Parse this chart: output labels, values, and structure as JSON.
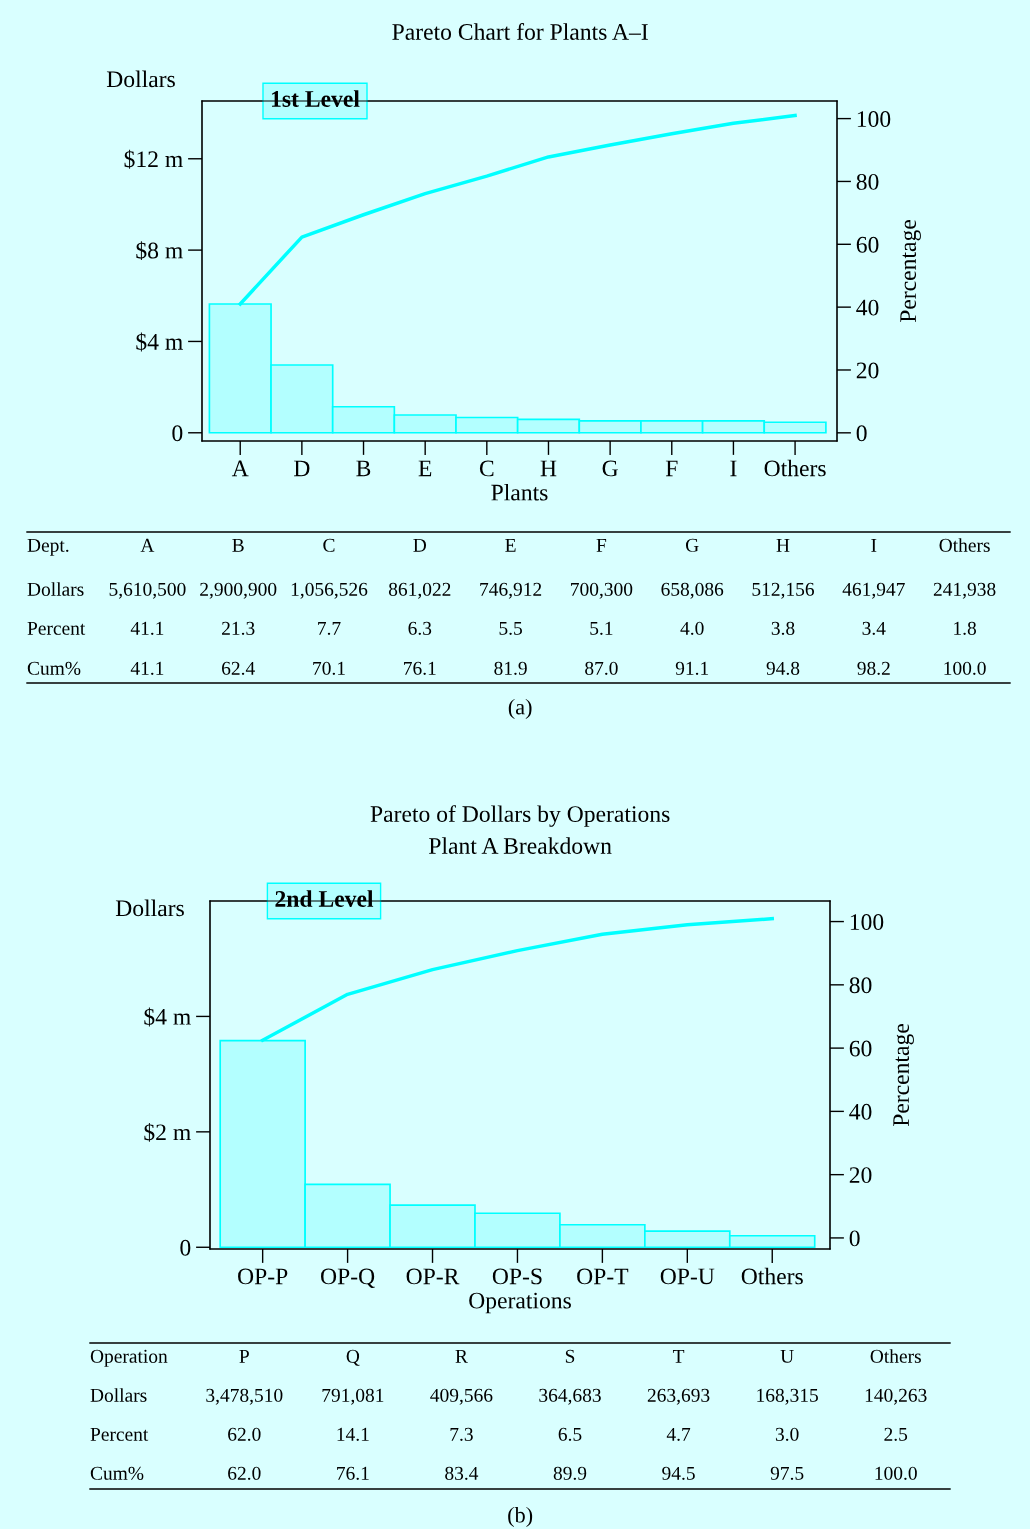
{
  "chart_data": [
    {
      "type": "bar",
      "title": "Pareto Chart for Plants A–I",
      "xlabel": "Plants",
      "ylabel": "Dollars",
      "y2label": "Percentage",
      "categories": [
        "A",
        "D",
        "B",
        "E",
        "C",
        "H",
        "G",
        "F",
        "I",
        "Others"
      ],
      "series": [
        {
          "color": "#b3ffff",
          "values": [
            5.64,
            2.97,
            1.14,
            0.78,
            0.67,
            0.59,
            0.52,
            0.52,
            0.52,
            0.46
          ]
        },
        {
          "type": "line",
          "axis": "y2",
          "color": "#00ffff",
          "values": [
            41.0,
            62.3,
            69.4,
            76.1,
            81.7,
            87.8,
            91.6,
            95.2,
            98.5,
            101.0
          ]
        }
      ],
      "ylim": [
        -0.36,
        14.53
      ],
      "yticks": [
        0,
        {
          "value": 4,
          "label": "$4 m"
        },
        {
          "value": 8,
          "label": "$8 m"
        },
        {
          "value": 12,
          "label": "$12 m"
        }
      ],
      "y2lim": [
        -2.6,
        105.6
      ],
      "y2ticks": [
        0,
        20,
        40,
        60,
        80,
        100
      ],
      "grid": false,
      "legend": false,
      "annotations": [
        "1st Level",
        "Dept.",
        "A",
        "B",
        "C",
        "D",
        "E",
        "F",
        "G",
        "H",
        "I",
        "Others",
        "Dollars",
        "5,610,500",
        "2,900,900",
        "1,056,526",
        "861,022",
        "746,912",
        "700,300",
        "658,086",
        "512,156",
        "461,947",
        "241,938",
        "Percent",
        "41.1",
        "21.3",
        "7.7",
        "6.3",
        "5.5",
        "5.1",
        "4.0",
        "3.8",
        "3.4",
        "1.8",
        "Cum%",
        "41.1",
        "62.4",
        "70.1",
        "76.1",
        "81.9",
        "87.0",
        "91.1",
        "94.8",
        "98.2",
        "100.0",
        "(a)"
      ]
    },
    {
      "type": "bar",
      "title": "Pareto of Dollars by Operations",
      "subtitle": "Plant A Breakdown",
      "xlabel": "Operations",
      "ylabel": "Dollars",
      "y2label": "Percentage",
      "categories": [
        "OP-P",
        "OP-Q",
        "OP-R",
        "OP-S",
        "OP-T",
        "OP-U",
        "Others"
      ],
      "series": [
        {
          "color": "#b3ffff",
          "values": [
            3.58,
            1.09,
            0.73,
            0.59,
            0.39,
            0.28,
            0.2
          ]
        },
        {
          "type": "line",
          "axis": "y2",
          "color": "#00ffff",
          "values": [
            62.5,
            77.0,
            84.8,
            90.8,
            96.0,
            99.0,
            100.9
          ]
        }
      ],
      "ylim": [
        -0.03,
        6.0
      ],
      "yticks": [
        0,
        {
          "value": 2,
          "label": "$2 m"
        },
        {
          "value": 4,
          "label": "$4 m"
        }
      ],
      "y2lim": [
        -3.5,
        106.5
      ],
      "y2ticks": [
        0,
        20,
        40,
        60,
        80,
        100
      ],
      "grid": false,
      "legend": false,
      "annotations": [
        "2nd Level",
        "Operation",
        "P",
        "Q",
        "R",
        "S",
        "T",
        "U",
        "Others",
        "Dollars",
        "3,478,510",
        "791,081",
        "409,566",
        "364,683",
        "263,693",
        "168,315",
        "140,263",
        "Percent",
        "62.0",
        "14.1",
        "7.3",
        "6.5",
        "4.7",
        "3.0",
        "2.5",
        "Cum%",
        "62.0",
        "76.1",
        "83.4",
        "89.9",
        "94.5",
        "97.5",
        "100.0",
        "(b)"
      ]
    }
  ]
}
